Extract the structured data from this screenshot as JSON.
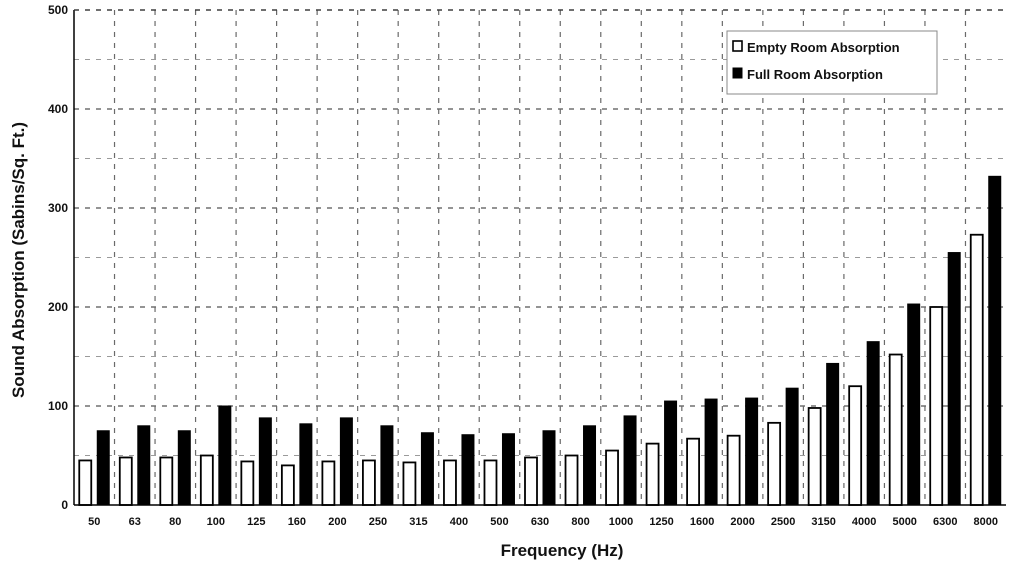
{
  "chart_data": {
    "type": "bar",
    "title": "",
    "xlabel": "Frequency (Hz)",
    "ylabel": "Sound Absorption (Sabins/Sq. Ft.)",
    "ylim": [
      0,
      500
    ],
    "yticks": [
      0,
      100,
      200,
      300,
      400,
      500
    ],
    "grid": true,
    "legend_position": "top-right",
    "categories": [
      "50",
      "63",
      "80",
      "100",
      "125",
      "160",
      "200",
      "250",
      "315",
      "400",
      "500",
      "630",
      "800",
      "1000",
      "1250",
      "1600",
      "2000",
      "2500",
      "3150",
      "4000",
      "5000",
      "6300",
      "8000"
    ],
    "series": [
      {
        "name": "Empty Room Absorption",
        "color": "#ffffff",
        "values": [
          45,
          48,
          48,
          50,
          44,
          40,
          44,
          45,
          43,
          45,
          45,
          48,
          50,
          55,
          62,
          67,
          70,
          83,
          98,
          120,
          152,
          200,
          273
        ]
      },
      {
        "name": "Full Room Absorption",
        "color": "#000000",
        "values": [
          75,
          80,
          75,
          100,
          88,
          82,
          88,
          80,
          73,
          71,
          72,
          75,
          80,
          90,
          105,
          107,
          108,
          118,
          143,
          165,
          203,
          255,
          332
        ]
      }
    ]
  }
}
